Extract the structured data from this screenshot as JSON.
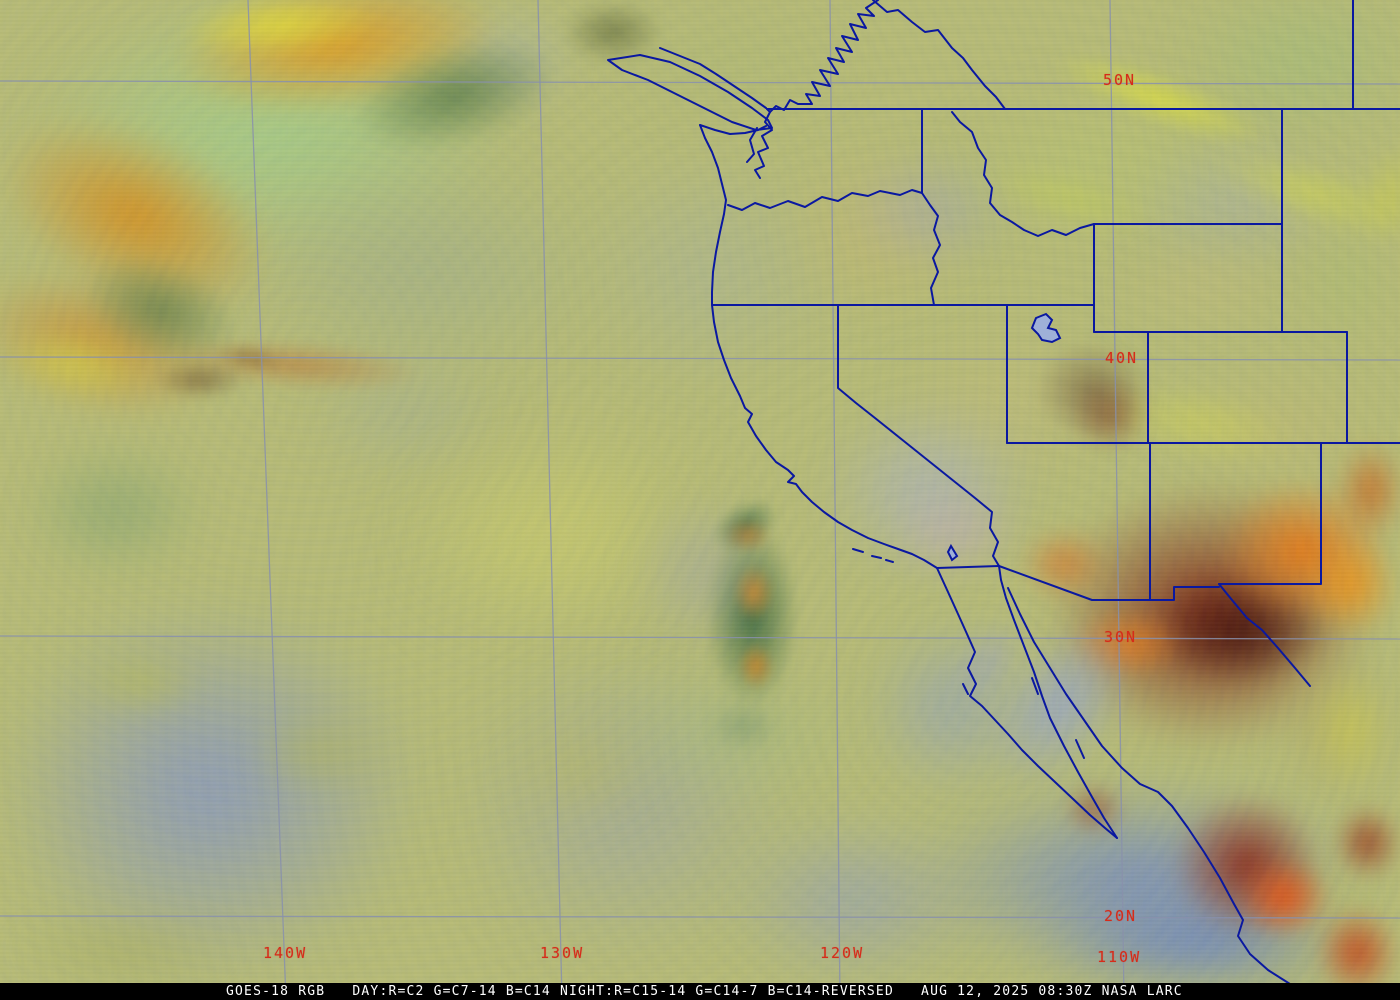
{
  "grid": {
    "lat_labels": [
      "50N",
      "40N",
      "30N",
      "20N"
    ],
    "lon_labels": [
      "140W",
      "130W",
      "120W",
      "110W"
    ],
    "label_color": "#d62b1a",
    "gridline_color": "#8890ac"
  },
  "map": {
    "boundary_color": "#0a18a0",
    "lake_fill_color": "#9fb0d8"
  },
  "footer": {
    "text": "GOES-18 RGB   DAY:R=C2 G=C7-14 B=C14 NIGHT:R=C15-14 G=C14-7 B=C14-REVERSED   AUG 12, 2025 08:30Z NASA LARC",
    "background": "#000000",
    "text_color": "#ffffff"
  }
}
